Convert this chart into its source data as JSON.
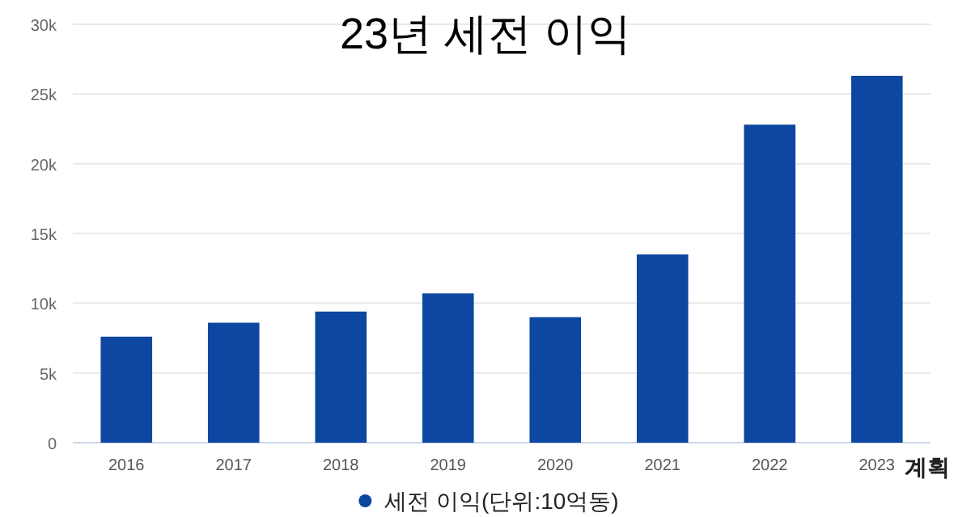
{
  "chart_data": {
    "type": "bar",
    "title": "23년 세전 이익",
    "categories": [
      "2016",
      "2017",
      "2018",
      "2019",
      "2020",
      "2021",
      "2022",
      "2023"
    ],
    "series": [
      {
        "name": "세전 이익(단위:10억동)",
        "color": "#0d47a1",
        "values": [
          7.6,
          8.6,
          9.4,
          10.7,
          9.0,
          13.5,
          22.8,
          26.3
        ]
      }
    ],
    "ylim": [
      0,
      30
    ],
    "yticks": [
      {
        "value": 0,
        "label": "0"
      },
      {
        "value": 5,
        "label": "5k"
      },
      {
        "value": 10,
        "label": "10k"
      },
      {
        "value": 15,
        "label": "15k"
      },
      {
        "value": 20,
        "label": "20k"
      },
      {
        "value": 25,
        "label": "25k"
      },
      {
        "value": 30,
        "label": "30k"
      }
    ],
    "grid": "y",
    "legend": "bottom",
    "marker": "circle",
    "annotations": [
      {
        "text": "계획",
        "x": "2023",
        "y": 0
      }
    ]
  }
}
